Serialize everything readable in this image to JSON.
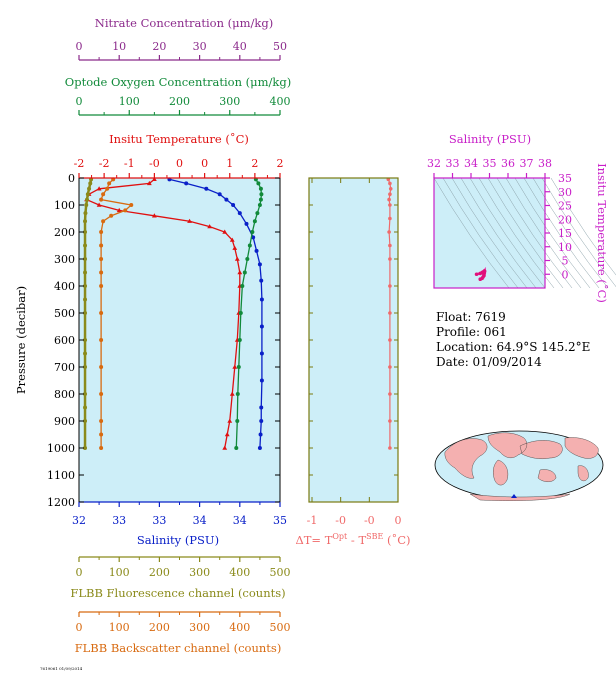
{
  "float_info": {
    "float": "Float:  7619",
    "profile": "Profile:  061",
    "location": "Location:  64.9°S  145.2°E",
    "date": "Date:  01/09/2014"
  },
  "footer_code": "7619061 01/09/2014",
  "colors": {
    "nitrate": "#8b2a8b",
    "oxygen": "#118a3a",
    "temperature": "#e01010",
    "salinity": "#0a20c8",
    "fluorescence": "#8a8a1a",
    "backscatter": "#d86a10",
    "delta_t": "#f06a6a",
    "ts_axis": "#c81ec8",
    "panel_bg": "#cdeef8"
  },
  "chart_data": [
    {
      "type": "line",
      "id": "main-profile",
      "ylabel": "Pressure (decibar)",
      "ylim": [
        1200,
        0
      ],
      "y_ticks": [
        "0",
        "100",
        "200",
        "300",
        "400",
        "500",
        "600",
        "700",
        "800",
        "900",
        "1000",
        "1100",
        "1200"
      ],
      "axes": {
        "nitrate": {
          "label": "Nitrate Concentration (μm/kg)",
          "range": [
            0,
            50
          ],
          "ticks": [
            "0",
            "10",
            "20",
            "30",
            "40",
            "50"
          ]
        },
        "oxygen": {
          "label": "Optode Oxygen Concentration (μm/kg)",
          "range": [
            0,
            400
          ],
          "ticks": [
            "0",
            "100",
            "200",
            "300",
            "400"
          ]
        },
        "temperature": {
          "label": "Insitu Temperature (˚C)",
          "range": [
            -2,
            2
          ],
          "ticks": [
            "-2",
            "-2",
            "-1",
            "-0",
            "0",
            "0",
            "1",
            "2",
            "2"
          ]
        },
        "salinity": {
          "label": "Salinity (PSU)",
          "range": [
            32,
            35
          ],
          "ticks": [
            "32",
            "33",
            "33",
            "34",
            "34",
            "35"
          ]
        },
        "fluorescence": {
          "label": "FLBB Fluorescence channel (counts)",
          "range": [
            0,
            500
          ],
          "ticks": [
            "0",
            "100",
            "200",
            "300",
            "400",
            "500"
          ]
        },
        "backscatter": {
          "label": "FLBB Backscatter channel (counts)",
          "range": [
            0,
            500
          ],
          "ticks": [
            "0",
            "100",
            "200",
            "300",
            "400",
            "500"
          ]
        }
      },
      "series": [
        {
          "name": "Insitu Temperature",
          "axis": "temperature",
          "x": [
            -0.5,
            -0.6,
            -1.6,
            -1.8,
            -1.85,
            -1.6,
            -1.2,
            -0.5,
            0.2,
            0.6,
            0.9,
            1.05,
            1.1,
            1.15,
            1.2,
            1.2,
            1.18,
            1.15,
            1.1,
            1.05,
            1.0,
            0.95,
            0.9
          ],
          "y": [
            5,
            20,
            40,
            60,
            80,
            100,
            120,
            140,
            160,
            180,
            200,
            230,
            260,
            300,
            350,
            400,
            500,
            600,
            700,
            800,
            900,
            950,
            1000
          ]
        },
        {
          "name": "Salinity",
          "axis": "salinity",
          "x": [
            33.35,
            33.6,
            33.9,
            34.1,
            34.2,
            34.3,
            34.4,
            34.5,
            34.6,
            34.65,
            34.7,
            34.72,
            34.73,
            34.73,
            34.73,
            34.73,
            34.72,
            34.72,
            34.71,
            34.7
          ],
          "y": [
            5,
            20,
            40,
            60,
            80,
            100,
            130,
            170,
            220,
            270,
            320,
            380,
            450,
            550,
            650,
            750,
            850,
            900,
            950,
            1000
          ]
        },
        {
          "name": "Optode Oxygen Concentration",
          "axis": "oxygen",
          "x": [
            352,
            357,
            362,
            363,
            362,
            360,
            355,
            350,
            345,
            340,
            335,
            330,
            325,
            322,
            320,
            318,
            316,
            315,
            313
          ],
          "y": [
            5,
            20,
            40,
            60,
            80,
            100,
            130,
            160,
            200,
            250,
            300,
            350,
            400,
            500,
            600,
            700,
            800,
            900,
            1000
          ]
        },
        {
          "name": "FLBB Fluorescence channel",
          "axis": "fluorescence",
          "x": [
            30,
            28,
            25,
            22,
            20,
            18,
            16,
            15,
            15,
            15,
            15,
            15,
            15,
            15,
            15,
            15,
            15,
            15,
            15,
            15,
            15,
            15
          ],
          "y": [
            5,
            20,
            40,
            60,
            80,
            100,
            130,
            160,
            200,
            250,
            300,
            350,
            400,
            450,
            500,
            600,
            650,
            700,
            800,
            850,
            900,
            1000
          ]
        },
        {
          "name": "FLBB Backscatter channel",
          "axis": "backscatter",
          "x": [
            85,
            75,
            70,
            60,
            55,
            130,
            115,
            80,
            60,
            55,
            55,
            55,
            55,
            55,
            55,
            55,
            55,
            55,
            55,
            55,
            55
          ],
          "y": [
            5,
            20,
            40,
            60,
            80,
            100,
            120,
            140,
            160,
            200,
            250,
            300,
            350,
            400,
            500,
            600,
            700,
            800,
            900,
            950,
            1000
          ]
        }
      ]
    },
    {
      "type": "line",
      "id": "delta-t",
      "xlabel": "ΔT= T",
      "xlabel_sup1": "Opt",
      "xlabel_mid": " - T",
      "xlabel_sup2": "SBE",
      "xlabel_end": " (˚C)",
      "xlim": [
        -1,
        0.1
      ],
      "x_ticks": [
        "-1",
        "-0",
        "-0",
        "0"
      ],
      "ylim": [
        1200,
        0
      ],
      "series": [
        {
          "name": "ΔT",
          "x": [
            -0.02,
            0.0,
            0.01,
            0.0,
            -0.01,
            0.0,
            0.0,
            -0.01,
            0.0,
            0.0,
            0.0,
            0.0,
            0.0,
            0.0,
            0.0,
            0.0,
            0.0
          ],
          "y": [
            5,
            20,
            40,
            60,
            80,
            100,
            150,
            200,
            250,
            300,
            400,
            500,
            600,
            700,
            800,
            900,
            1000
          ]
        }
      ]
    },
    {
      "type": "scatter",
      "id": "ts-diagram",
      "title": "Salinity (PSU)",
      "ylabel": "Insitu Temperature (˚C)",
      "xlim": [
        32,
        38
      ],
      "ylim": [
        -5,
        35
      ],
      "x_ticks": [
        "32",
        "33",
        "34",
        "35",
        "36",
        "37",
        "38"
      ],
      "y_ticks": [
        "0",
        "5",
        "10",
        "15",
        "20",
        "25",
        "30",
        "35"
      ],
      "series": [
        {
          "name": "T-S",
          "x": [
            34.5,
            34.6,
            34.65,
            34.7,
            34.7,
            34.72,
            34.73,
            34.73,
            34.72,
            34.7,
            34.65,
            34.6,
            34.5,
            34.3
          ],
          "y": [
            -1.8,
            -1.5,
            -1.0,
            -0.5,
            0.0,
            0.5,
            1.0,
            1.2,
            1.1,
            0.9,
            0.8,
            0.6,
            0.3,
            0.0
          ]
        }
      ]
    }
  ]
}
